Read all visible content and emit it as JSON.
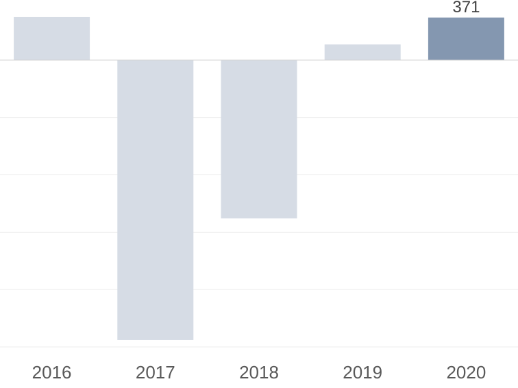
{
  "chart_data": {
    "type": "bar",
    "categories": [
      "2016",
      "2017",
      "2018",
      "2019",
      "2020"
    ],
    "values": [
      375,
      -2440,
      -1380,
      137,
      371
    ],
    "colors": [
      "#d6dce5",
      "#d6dce5",
      "#d6dce5",
      "#d6dce5",
      "#8497b0"
    ],
    "show_value_label": [
      false,
      false,
      false,
      false,
      true
    ],
    "ylim": [
      -2500,
      500
    ],
    "yticks": [
      -2500,
      -2000,
      -1500,
      -1000,
      -500,
      0
    ],
    "grid": true
  }
}
